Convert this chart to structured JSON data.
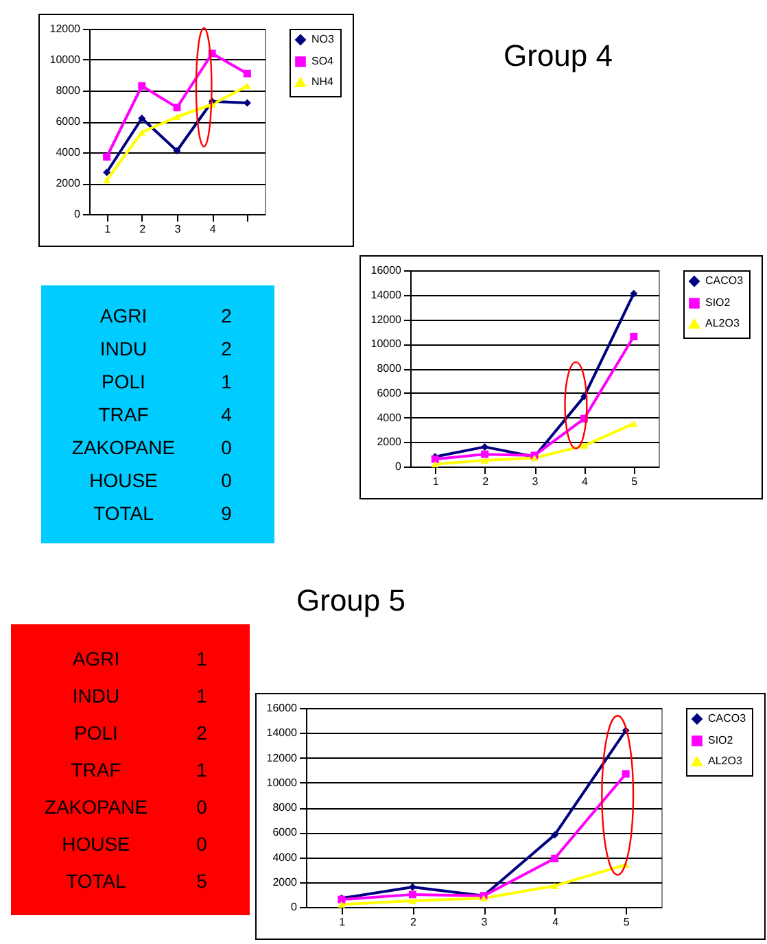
{
  "chart_data": [
    {
      "type": "line",
      "categories": [
        "1",
        "2",
        "3",
        "4",
        null
      ],
      "ylim": [
        0,
        12000
      ],
      "yticks": [
        0,
        2000,
        4000,
        6000,
        8000,
        10000,
        12000
      ],
      "grid": "y",
      "legend": "right",
      "series": [
        {
          "name": "NO3",
          "color": "#000080",
          "marker": "diamond",
          "values": [
            2700,
            6200,
            4100,
            7300,
            7200
          ]
        },
        {
          "name": "SO4",
          "color": "#ff00ff",
          "marker": "square",
          "values": [
            3700,
            8300,
            6900,
            10400,
            9100
          ]
        },
        {
          "name": "NH4",
          "color": "#ffff00",
          "marker": "triangle",
          "values": [
            2200,
            5300,
            6300,
            7100,
            8300
          ]
        }
      ]
    },
    {
      "type": "line",
      "title": "Group 4",
      "categories": [
        "1",
        "2",
        "3",
        "4",
        "5"
      ],
      "ylim": [
        0,
        16000
      ],
      "yticks": [
        0,
        2000,
        4000,
        6000,
        8000,
        10000,
        12000,
        14000,
        16000
      ],
      "grid": "y",
      "legend": "right",
      "series": [
        {
          "name": "CACO3",
          "color": "#000080",
          "marker": "diamond",
          "values": [
            800,
            1600,
            800,
            5700,
            14100
          ]
        },
        {
          "name": "SIO2",
          "color": "#ff00ff",
          "marker": "square",
          "values": [
            600,
            1000,
            900,
            3900,
            10600
          ]
        },
        {
          "name": "AL2O3",
          "color": "#ffff00",
          "marker": "triangle",
          "values": [
            200,
            500,
            700,
            1700,
            3500
          ]
        }
      ]
    },
    {
      "type": "other",
      "color": "#00ccff",
      "categories": [
        "AGRI",
        "INDU",
        "POLI",
        "TRAF",
        "ZAKOPANE",
        "HOUSE",
        "TOTAL"
      ],
      "values": [
        2,
        2,
        1,
        4,
        0,
        0,
        9
      ],
      "data_labels": true
    },
    {
      "type": "other",
      "color": "#ff0000",
      "categories": [
        "AGRI",
        "INDU",
        "POLI",
        "TRAF",
        "ZAKOPANE",
        "HOUSE",
        "TOTAL"
      ],
      "values": [
        1,
        1,
        2,
        1,
        0,
        0,
        5
      ],
      "data_labels": true
    },
    {
      "type": "line",
      "title": "Group 5",
      "categories": [
        "1",
        "2",
        "3",
        "4",
        "5"
      ],
      "ylim": [
        0,
        16000
      ],
      "yticks": [
        0,
        2000,
        4000,
        6000,
        8000,
        10000,
        12000,
        14000,
        16000
      ],
      "grid": "y",
      "legend": "right",
      "series": [
        {
          "name": "CACO3",
          "color": "#000080",
          "marker": "diamond",
          "values": [
            700,
            1600,
            900,
            5800,
            14200
          ]
        },
        {
          "name": "SIO2",
          "color": "#ff00ff",
          "marker": "square",
          "values": [
            600,
            1000,
            900,
            3900,
            10700
          ]
        },
        {
          "name": "AL2O3",
          "color": "#ffff00",
          "marker": "triangle",
          "values": [
            200,
            500,
            700,
            1700,
            3400
          ]
        }
      ]
    }
  ]
}
